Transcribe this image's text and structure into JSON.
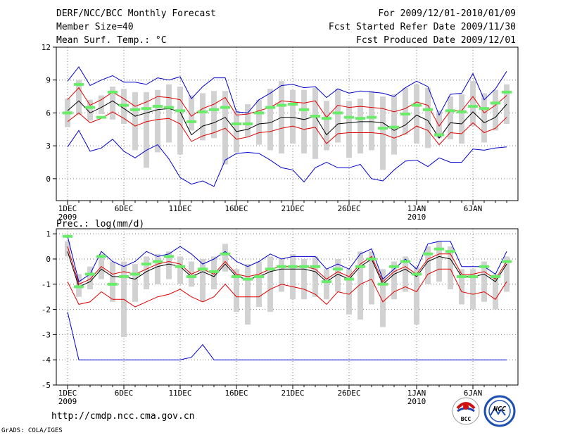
{
  "header": {
    "title": "DERF/NCC/BCC Monthly Forecast",
    "member_size": "Member Size=40",
    "variable": "Mean Surf. Temp.: °C",
    "period": "For 2009/12/01-2010/01/09",
    "refer_date": "Fcst Started Refer Date 2009/11/30",
    "produced_date": "Fcst Produced Date 2009/12/01"
  },
  "footer": {
    "url": "http://cmdp.ncc.cma.gov.cn",
    "credit": "GrADS: COLA/IGES",
    "logo1_text": "BCC",
    "logo2_text": "NCC"
  },
  "colors": {
    "envelope": "#0000cc",
    "spread": "#e00000",
    "mean": "#000000",
    "box": "#d2d2d2",
    "obs": "#66ee66"
  },
  "chart_data": [
    {
      "type": "line",
      "name": "temperature",
      "title": "Mean Surf. Temp.: °C",
      "ylim": [
        -2,
        12
      ],
      "yticks": [
        0,
        3,
        6,
        9,
        12
      ],
      "xlim": [
        0,
        41
      ],
      "x_ticks": [
        {
          "x": 1,
          "label": "1DEC",
          "sub": "2009"
        },
        {
          "x": 6,
          "label": "6DEC",
          "sub": ""
        },
        {
          "x": 11,
          "label": "11DEC",
          "sub": ""
        },
        {
          "x": 16,
          "label": "16DEC",
          "sub": ""
        },
        {
          "x": 21,
          "label": "21DEC",
          "sub": ""
        },
        {
          "x": 26,
          "label": "26DEC",
          "sub": ""
        },
        {
          "x": 32,
          "label": "1JAN",
          "sub": "2010"
        },
        {
          "x": 37,
          "label": "6JAN",
          "sub": ""
        }
      ],
      "series": [
        {
          "name": "max",
          "values": [
            8.9,
            10.2,
            8.5,
            9.0,
            9.4,
            8.8,
            8.8,
            8.6,
            9.2,
            9.0,
            9.3,
            7.3,
            8.4,
            9.2,
            9.2,
            6.1,
            6.0,
            7.2,
            7.8,
            8.5,
            8.6,
            8.3,
            8.4,
            7.4,
            8.2,
            7.8,
            8.0,
            7.9,
            7.8,
            7.5,
            8.3,
            8.9,
            8.4,
            5.8,
            7.7,
            7.8,
            9.6,
            7.2,
            8.2,
            9.8
          ]
        },
        {
          "name": "upper",
          "values": [
            7.2,
            8.3,
            6.7,
            7.2,
            7.9,
            7.3,
            6.6,
            7.0,
            7.5,
            7.4,
            7.2,
            5.7,
            6.4,
            6.8,
            7.4,
            5.8,
            5.9,
            6.2,
            6.5,
            7.1,
            7.0,
            6.9,
            7.1,
            5.6,
            6.7,
            6.5,
            6.6,
            6.5,
            6.4,
            6.1,
            6.4,
            7.0,
            6.7,
            4.8,
            6.2,
            6.2,
            7.5,
            6.0,
            6.7,
            7.6
          ]
        },
        {
          "name": "mean",
          "values": [
            6.2,
            7.1,
            6.0,
            6.5,
            7.1,
            6.4,
            5.7,
            6.0,
            6.3,
            6.4,
            6.1,
            4.0,
            4.8,
            5.1,
            5.6,
            4.3,
            4.5,
            5.0,
            5.1,
            5.6,
            5.6,
            5.4,
            5.7,
            4.0,
            5.0,
            5.1,
            5.2,
            5.2,
            5.1,
            4.4,
            4.9,
            5.8,
            5.3,
            3.7,
            5.1,
            5.0,
            6.1,
            5.1,
            5.6,
            6.8
          ]
        },
        {
          "name": "lower",
          "values": [
            5.2,
            6.0,
            5.1,
            5.5,
            6.1,
            5.5,
            4.8,
            5.2,
            5.4,
            5.5,
            5.0,
            3.4,
            3.9,
            4.2,
            4.6,
            3.6,
            3.8,
            4.2,
            4.3,
            4.6,
            4.8,
            4.5,
            4.7,
            3.2,
            4.1,
            4.2,
            4.2,
            4.2,
            4.1,
            3.7,
            4.1,
            4.8,
            4.4,
            3.1,
            4.2,
            4.1,
            5.1,
            4.2,
            4.6,
            5.6
          ]
        },
        {
          "name": "min",
          "values": [
            2.9,
            4.4,
            2.5,
            2.8,
            3.6,
            2.5,
            1.9,
            2.6,
            3.1,
            1.8,
            0.1,
            -0.5,
            -0.2,
            -0.7,
            1.7,
            2.3,
            2.4,
            2.3,
            1.7,
            1.0,
            0.8,
            -0.3,
            1.0,
            1.5,
            1.0,
            1.0,
            1.3,
            0.0,
            -0.2,
            0.8,
            1.6,
            1.7,
            1.1,
            1.9,
            1.5,
            1.5,
            2.7,
            2.6,
            2.8,
            2.9
          ]
        },
        {
          "name": "observed",
          "values": [
            6.0,
            8.6,
            6.5,
            5.6,
            7.9,
            6.7,
            6.3,
            6.4,
            6.6,
            6.5,
            6.2,
            5.2,
            6.1,
            6.3,
            6.5,
            5.0,
            5.0,
            6.0,
            6.5,
            6.7,
            6.8,
            6.3,
            5.7,
            5.5,
            6.0,
            5.6,
            5.5,
            5.6,
            4.6,
            4.7,
            5.9,
            6.7,
            6.3,
            4.0,
            6.2,
            6.1,
            6.6,
            6.4,
            6.9,
            7.9
          ]
        },
        {
          "name": "box_top",
          "values": [
            7.3,
            9.0,
            7.2,
            7.6,
            8.4,
            8.2,
            7.9,
            7.9,
            8.1,
            8.6,
            8.4,
            7.6,
            7.8,
            8.0,
            8.0,
            6.2,
            6.8,
            7.2,
            8.2,
            8.9,
            8.1,
            8.1,
            8.3,
            7.1,
            8.2,
            7.1,
            7.3,
            8.0,
            7.5,
            7.7,
            8.3,
            8.6,
            8.3,
            6.2,
            7.5,
            7.7,
            8.9,
            7.8,
            8.1,
            8.6
          ]
        },
        {
          "name": "box_bottom",
          "values": [
            4.7,
            5.8,
            5.3,
            5.9,
            5.4,
            5.0,
            2.6,
            1.0,
            2.4,
            3.3,
            2.2,
            4.4,
            3.5,
            3.7,
            1.3,
            2.4,
            3.8,
            3.1,
            2.6,
            2.3,
            3.2,
            2.3,
            1.8,
            2.6,
            3.3,
            1.9,
            2.3,
            2.6,
            0.8,
            2.2,
            4.0,
            3.2,
            2.8,
            3.7,
            3.6,
            3.2,
            4.8,
            3.3,
            4.4,
            5.0
          ]
        }
      ]
    },
    {
      "type": "line",
      "name": "precipitation",
      "title": "Prec.: log(mm/d)",
      "ylim": [
        -5,
        1.2
      ],
      "yticks": [
        -5,
        -4,
        -3,
        -2,
        -1,
        0,
        1
      ],
      "xlim": [
        0,
        41
      ],
      "x_ticks": [
        {
          "x": 1,
          "label": "1DEC",
          "sub": "2009"
        },
        {
          "x": 6,
          "label": "6DEC",
          "sub": ""
        },
        {
          "x": 11,
          "label": "11DEC",
          "sub": ""
        },
        {
          "x": 16,
          "label": "16DEC",
          "sub": ""
        },
        {
          "x": 21,
          "label": "21DEC",
          "sub": ""
        },
        {
          "x": 26,
          "label": "26DEC",
          "sub": ""
        },
        {
          "x": 32,
          "label": "1JAN",
          "sub": "2010"
        },
        {
          "x": 37,
          "label": "6JAN",
          "sub": ""
        }
      ],
      "series": [
        {
          "name": "max",
          "values": [
            0.9,
            -0.9,
            -0.6,
            0.3,
            -0.1,
            -0.3,
            -0.1,
            0.3,
            0.1,
            0.2,
            0.5,
            0.2,
            -0.2,
            0.0,
            0.3,
            -0.1,
            -0.3,
            -0.1,
            0.2,
            0.0,
            0.1,
            0.1,
            0.1,
            -0.4,
            -0.2,
            -0.4,
            0.2,
            0.4,
            -0.8,
            -0.4,
            0.0,
            -0.4,
            0.6,
            0.7,
            0.7,
            -0.3,
            -0.3,
            -0.3,
            -0.6,
            0.3
          ]
        },
        {
          "name": "upper",
          "values": [
            0.5,
            -1.0,
            -0.8,
            -0.3,
            -0.6,
            -0.5,
            -0.6,
            -0.4,
            -0.2,
            -0.1,
            -0.2,
            -0.6,
            -0.4,
            -0.6,
            -0.1,
            -0.6,
            -0.7,
            -0.6,
            -0.4,
            -0.3,
            -0.3,
            -0.3,
            -0.4,
            -0.8,
            -0.5,
            -0.7,
            -0.2,
            0.1,
            -0.9,
            -0.5,
            -0.3,
            -0.6,
            0.0,
            0.2,
            0.2,
            -0.6,
            -0.6,
            -0.5,
            -0.8,
            -0.1
          ]
        },
        {
          "name": "mean",
          "values": [
            0.3,
            -1.1,
            -0.9,
            -0.4,
            -0.7,
            -0.7,
            -0.8,
            -0.5,
            -0.3,
            -0.2,
            -0.3,
            -0.7,
            -0.5,
            -0.7,
            -0.2,
            -0.7,
            -0.8,
            -0.7,
            -0.5,
            -0.4,
            -0.4,
            -0.4,
            -0.5,
            -0.9,
            -0.6,
            -0.8,
            -0.3,
            0.0,
            -1.0,
            -0.6,
            -0.4,
            -0.7,
            -0.1,
            0.1,
            0.0,
            -0.7,
            -0.7,
            -0.6,
            -0.9,
            -0.2
          ]
        },
        {
          "name": "lower",
          "values": [
            -0.9,
            -1.8,
            -1.7,
            -1.3,
            -1.6,
            -1.6,
            -1.9,
            -1.7,
            -1.5,
            -1.4,
            -1.2,
            -1.5,
            -1.7,
            -1.5,
            -1.0,
            -1.5,
            -1.5,
            -1.5,
            -1.2,
            -1.0,
            -1.1,
            -1.2,
            -1.4,
            -1.8,
            -1.3,
            -1.4,
            -1.0,
            -0.8,
            -1.7,
            -1.3,
            -1.1,
            -1.3,
            -0.6,
            -0.4,
            -0.4,
            -1.3,
            -1.4,
            -1.3,
            -1.6,
            -0.9
          ]
        },
        {
          "name": "min",
          "values": [
            -2.1,
            -4.0,
            -4.0,
            -4.0,
            -4.0,
            -4.0,
            -4.0,
            -4.0,
            -4.0,
            -4.0,
            -4.0,
            -3.9,
            -3.4,
            -4.0,
            -4.0,
            -4.0,
            -4.0,
            -4.0,
            -4.0,
            -4.0,
            -4.0,
            -4.0,
            -4.0,
            -4.0,
            -4.0,
            -4.0,
            -4.0,
            -4.0,
            -4.0,
            -4.0,
            -4.0,
            -4.0,
            -4.0,
            -4.0,
            -4.0,
            -4.0,
            -4.0,
            -4.0,
            -4.0,
            -4.0
          ]
        },
        {
          "name": "observed",
          "values": [
            0.9,
            -1.1,
            -0.6,
            0.1,
            -1.0,
            -0.7,
            -0.6,
            -0.2,
            -0.1,
            0.1,
            -0.3,
            -0.7,
            -0.4,
            -0.5,
            0.2,
            -0.7,
            -0.8,
            -0.7,
            -0.4,
            -0.3,
            -0.3,
            -0.3,
            -0.3,
            -0.9,
            -0.4,
            -0.8,
            -0.3,
            0.0,
            -1.0,
            -0.3,
            -0.1,
            -0.6,
            0.2,
            0.4,
            0.3,
            -0.7,
            -0.7,
            -0.3,
            -0.7,
            -0.1
          ]
        },
        {
          "name": "box_top",
          "values": [
            0.7,
            -0.6,
            -0.3,
            0.2,
            -0.1,
            -0.1,
            -0.2,
            0.1,
            0.2,
            0.3,
            0.1,
            -0.1,
            0.0,
            0.1,
            0.6,
            -0.4,
            -0.2,
            -0.1,
            0.1,
            0.0,
            0.2,
            0.0,
            0.1,
            -0.4,
            0.0,
            -0.4,
            0.3,
            0.3,
            -0.4,
            -0.1,
            0.1,
            -0.3,
            0.5,
            0.7,
            0.5,
            -0.4,
            -0.4,
            -0.1,
            -0.6,
            0.1
          ]
        },
        {
          "name": "box_bottom",
          "values": [
            0.1,
            -1.5,
            -1.2,
            -0.8,
            -1.7,
            -3.1,
            -1.7,
            -1.2,
            -1.0,
            -0.8,
            -1.0,
            -1.1,
            -1.7,
            -1.2,
            -0.5,
            -2.1,
            -2.6,
            -1.9,
            -2.1,
            -1.3,
            -1.6,
            -1.6,
            -1.5,
            -1.6,
            -1.3,
            -2.2,
            -2.4,
            -1.8,
            -2.7,
            -1.6,
            -1.3,
            -2.6,
            -1.0,
            -0.9,
            -1.2,
            -1.8,
            -2.0,
            -1.7,
            -2.0,
            -1.3
          ]
        }
      ]
    }
  ]
}
